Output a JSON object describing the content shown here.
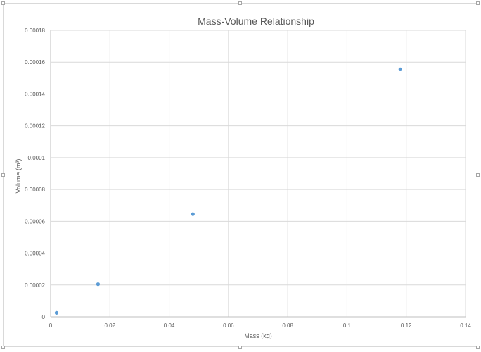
{
  "chart_data": {
    "type": "scatter",
    "title": "Mass-Volume Relationship",
    "xlabel": "Mass (kg)",
    "ylabel": "Volume (m³)",
    "xlim": [
      0,
      0.14
    ],
    "ylim": [
      0,
      0.00018
    ],
    "x_ticks": [
      "0",
      "0.02",
      "0.04",
      "0.06",
      "0.08",
      "0.1",
      "0.12",
      "0.14"
    ],
    "y_ticks": [
      "0",
      "0.00002",
      "0.00004",
      "0.00006",
      "0.00008",
      "0.0001",
      "0.00012",
      "0.00014",
      "0.00016",
      "0.00018"
    ],
    "grid": true,
    "legend": "none",
    "marker_color": "#5b9bd5",
    "points": [
      {
        "x": 0.002,
        "y": 2.5e-06
      },
      {
        "x": 0.016,
        "y": 2.05e-05
      },
      {
        "x": 0.048,
        "y": 6.45e-05
      },
      {
        "x": 0.118,
        "y": 0.0001555
      }
    ]
  }
}
